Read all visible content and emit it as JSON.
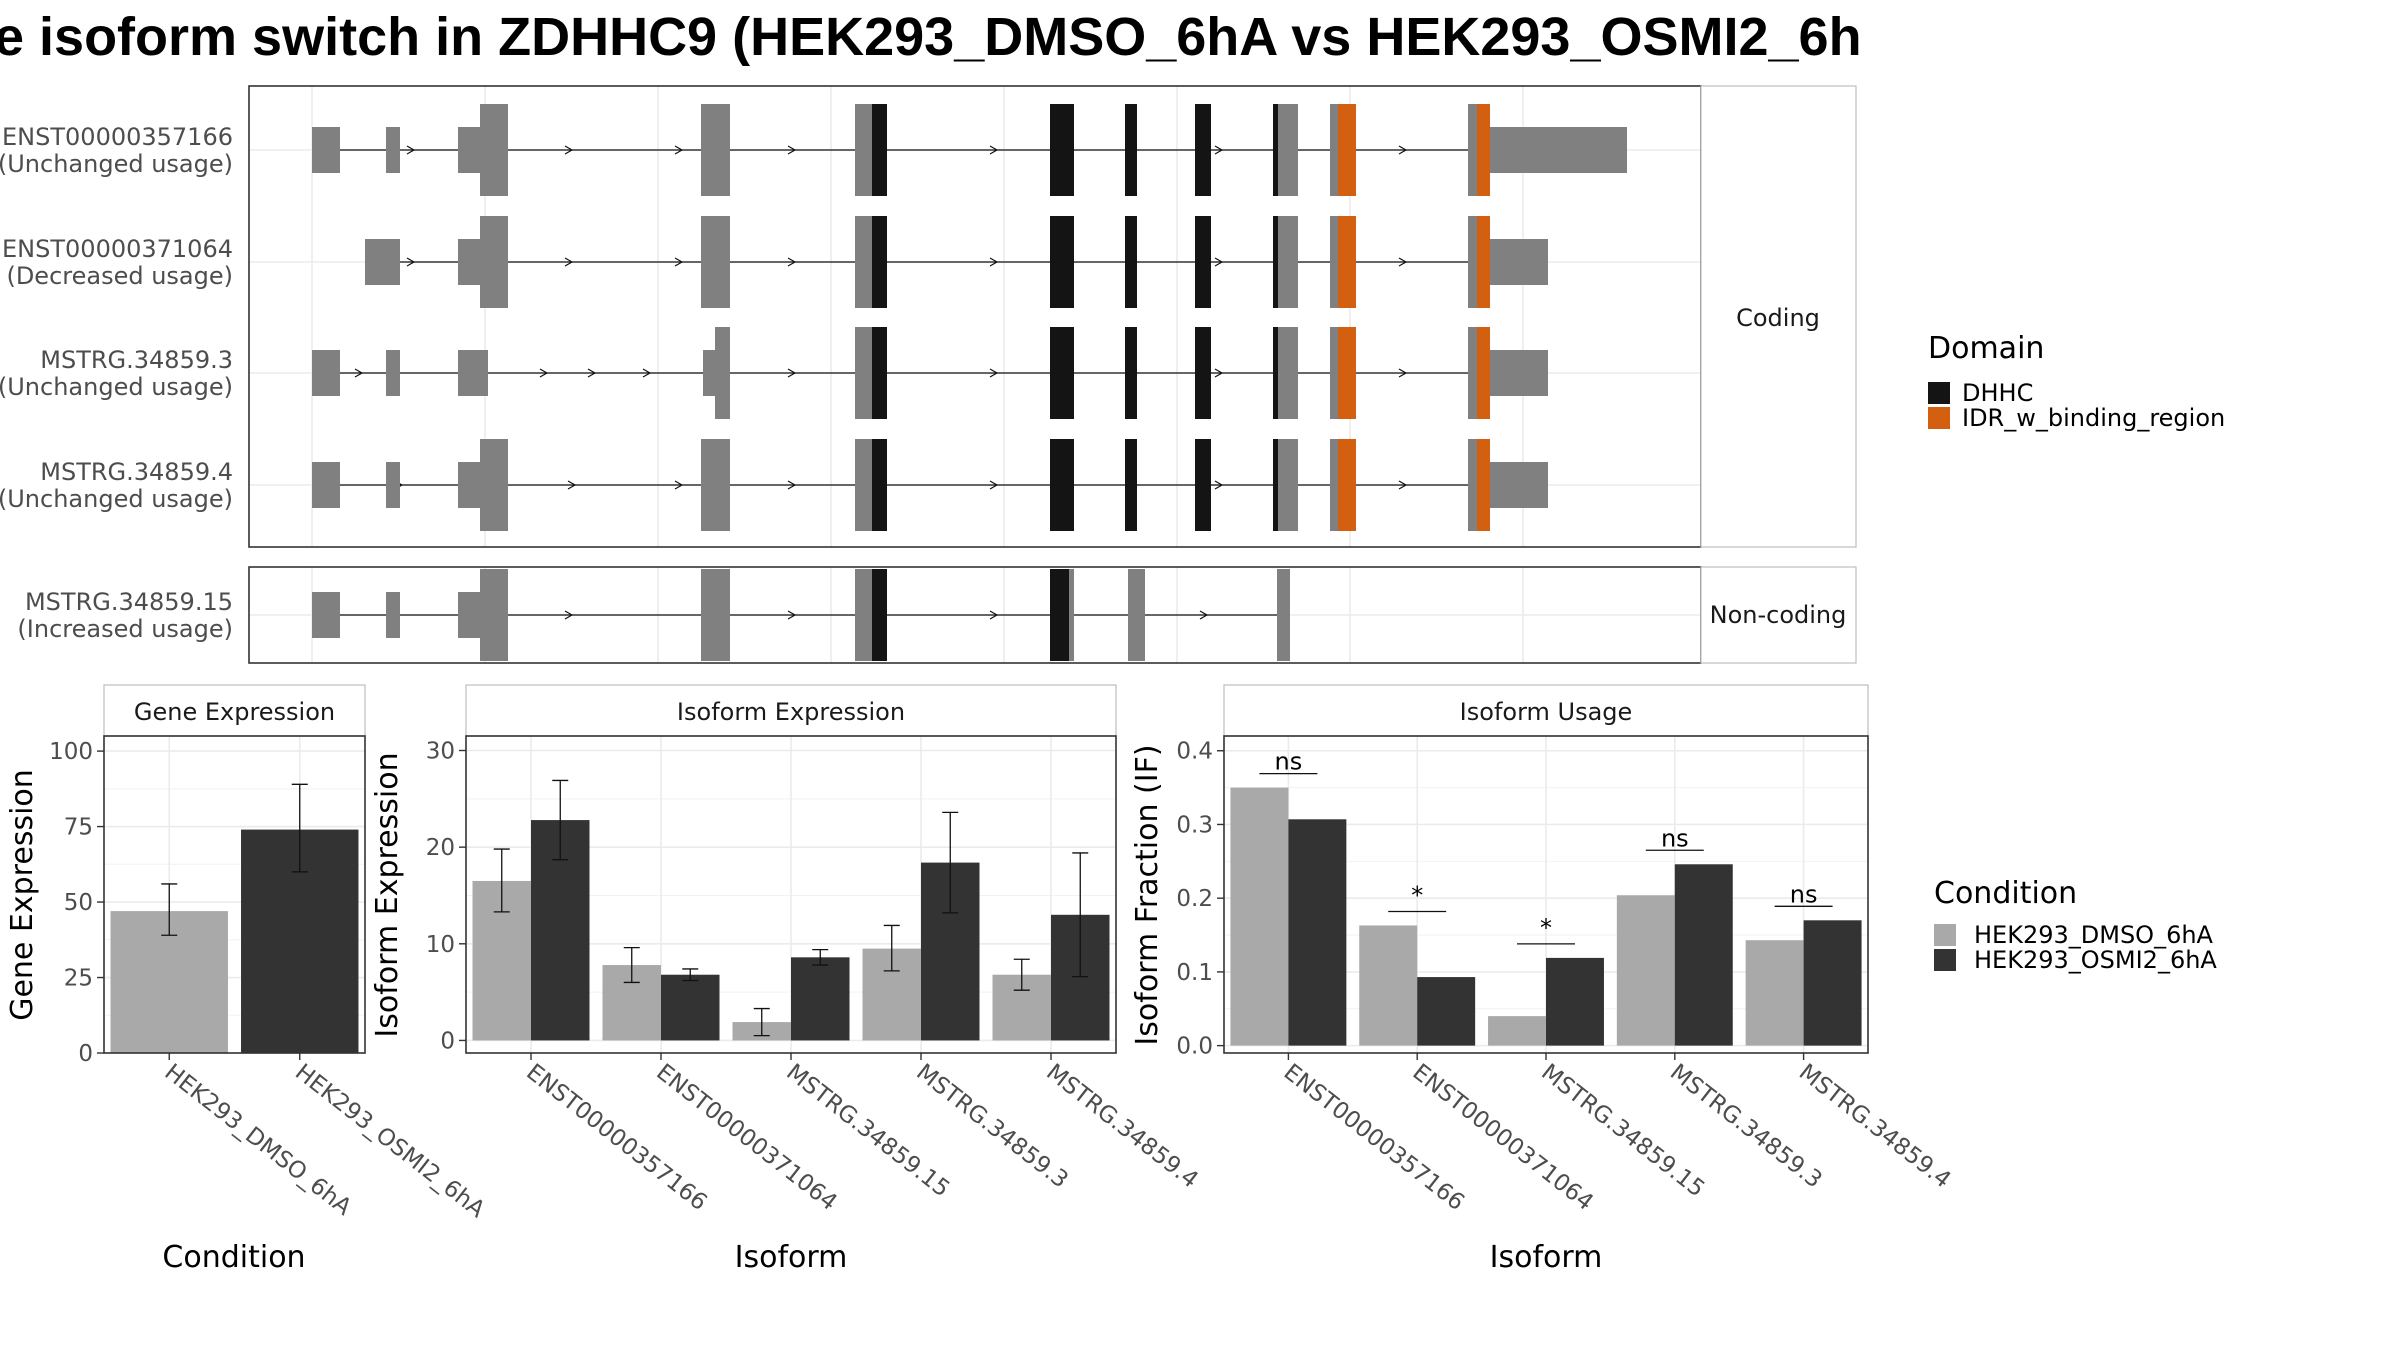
{
  "title": "e isoform switch in ZDHHC9 (HEK293_DMSO_6hA vs HEK293_OSMI2_6h",
  "colors": {
    "exon": "#808080",
    "DHHC": "#141414",
    "IDR_w_binding_region": "#D35F10",
    "dmso": "#A9A9A9",
    "osmi": "#333333"
  },
  "structure": {
    "facet_coding": "Coding",
    "facet_noncoding": "Non-coding",
    "transcripts": [
      {
        "id": "ENST00000357166",
        "usage": "(Unchanged usage)",
        "first_exon": 1
      },
      {
        "id": "ENST00000371064",
        "usage": "(Decreased usage)",
        "first_exon": 2
      },
      {
        "id": "MSTRG.34859.3",
        "usage": "(Unchanged usage)",
        "first_exon": 1
      },
      {
        "id": "MSTRG.34859.4",
        "usage": "(Unchanged usage)",
        "first_exon": 1
      },
      {
        "id": "MSTRG.34859.15",
        "usage": "(Increased usage)",
        "first_exon": 1
      }
    ]
  },
  "domain_legend": {
    "title": "Domain",
    "items": [
      {
        "label": "DHHC",
        "color": "#141414"
      },
      {
        "label": "IDR_w_binding_region",
        "color": "#D35F10"
      }
    ]
  },
  "condition_legend": {
    "title": "Condition",
    "items": [
      {
        "label": "HEK293_DMSO_6hA",
        "color": "#A9A9A9"
      },
      {
        "label": "HEK293_OSMI2_6hA",
        "color": "#333333"
      }
    ]
  },
  "chart_data": [
    {
      "type": "bar",
      "panel": "Gene Expression",
      "title": "Gene Expression",
      "xlabel": "Condition",
      "ylabel": "Gene Expression",
      "categories": [
        "HEK293_DMSO_6hA",
        "HEK293_OSMI2_6hA"
      ],
      "series": [
        {
          "values": [
            47,
            74
          ],
          "error_low": [
            39,
            60
          ],
          "error_high": [
            56,
            89
          ]
        }
      ],
      "yticks": [
        0,
        25,
        50,
        75,
        100
      ],
      "ylim": [
        0,
        105
      ]
    },
    {
      "type": "bar",
      "panel": "Isoform Expression",
      "title": "Isoform Expression",
      "xlabel": "Isoform",
      "ylabel": "Isoform Expression",
      "categories": [
        "ENST00000357166",
        "ENST00000371064",
        "MSTRG.34859.15",
        "MSTRG.34859.3",
        "MSTRG.34859.4"
      ],
      "series": [
        {
          "name": "HEK293_DMSO_6hA",
          "values": [
            16.5,
            7.8,
            1.9,
            9.5,
            6.8
          ],
          "error_low": [
            13.3,
            6.0,
            0.5,
            7.2,
            5.2
          ],
          "error_high": [
            19.8,
            9.6,
            3.3,
            11.9,
            8.4
          ]
        },
        {
          "name": "HEK293_OSMI2_6hA",
          "values": [
            22.8,
            6.8,
            8.6,
            18.4,
            13.0
          ],
          "error_low": [
            18.7,
            6.2,
            7.8,
            13.2,
            6.6
          ],
          "error_high": [
            26.9,
            7.4,
            9.4,
            23.6,
            19.4
          ]
        }
      ],
      "yticks": [
        0,
        10,
        20,
        30
      ],
      "ylim": [
        -1.3,
        31.5
      ]
    },
    {
      "type": "bar",
      "panel": "Isoform Usage",
      "title": "Isoform Usage",
      "xlabel": "Isoform",
      "ylabel": "Isoform Fraction (IF)",
      "categories": [
        "ENST00000357166",
        "ENST00000371064",
        "MSTRG.34859.15",
        "MSTRG.34859.3",
        "MSTRG.34859.4"
      ],
      "series": [
        {
          "name": "HEK293_DMSO_6hA",
          "values": [
            0.35,
            0.163,
            0.04,
            0.204,
            0.143
          ]
        },
        {
          "name": "HEK293_OSMI2_6hA",
          "values": [
            0.307,
            0.093,
            0.119,
            0.246,
            0.17
          ]
        }
      ],
      "significance": [
        "ns",
        "*",
        "*",
        "ns",
        "ns"
      ],
      "yticks": [
        0.0,
        0.1,
        0.2,
        0.3,
        0.4
      ],
      "ylim": [
        -0.01,
        0.42
      ]
    }
  ]
}
